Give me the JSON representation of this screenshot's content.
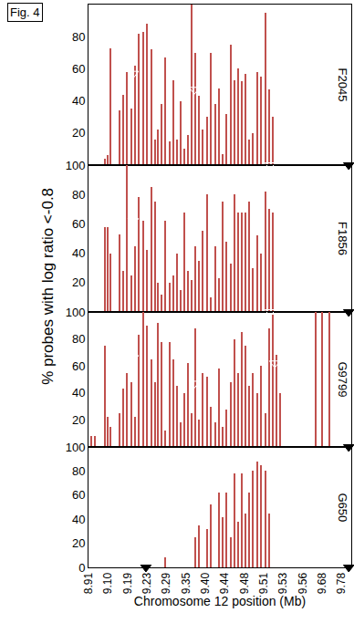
{
  "figure_label": "Fig. 4",
  "y_label": "% probes with log ratio <-0.8",
  "x_label": "Chromosome 12 position (Mb)",
  "xlim": [
    0,
    13.5
  ],
  "xticks": [
    {
      "value": 0,
      "label": "8.91"
    },
    {
      "value": 1,
      "label": "9.10"
    },
    {
      "value": 2,
      "label": "9.19"
    },
    {
      "value": 3,
      "label": "9.23"
    },
    {
      "value": 4,
      "label": "9.29"
    },
    {
      "value": 5,
      "label": "9.35"
    },
    {
      "value": 6,
      "label": "9.40"
    },
    {
      "value": 7,
      "label": "9.44"
    },
    {
      "value": 8,
      "label": "9.48"
    },
    {
      "value": 9,
      "label": "9.51"
    },
    {
      "value": 10,
      "label": "9.53"
    },
    {
      "value": 11,
      "label": "9.56"
    },
    {
      "value": 12,
      "label": "9.68"
    },
    {
      "value": 13,
      "label": "9.78"
    }
  ],
  "chart_data": [
    {
      "type": "bar",
      "title": "F2045",
      "color": "#c0504d",
      "ylim": [
        0,
        100
      ],
      "yticks": [
        20,
        40,
        60,
        80,
        100
      ],
      "tick_labels": "y",
      "x": [
        0.84,
        0.98,
        1.13,
        1.59,
        1.78,
        1.97,
        2.2,
        2.39,
        2.58,
        2.81,
        3.0,
        3.24,
        3.42,
        3.56,
        3.75,
        3.94,
        4.17,
        4.36,
        4.55,
        4.74,
        4.92,
        5.11,
        5.3,
        5.49,
        5.67,
        5.86,
        6.1,
        6.28,
        6.52,
        6.71,
        6.89,
        7.08,
        7.32,
        7.5,
        7.69,
        7.88,
        8.07,
        8.25,
        8.44,
        8.68,
        8.86,
        9.1,
        9.29,
        9.47
      ],
      "values": [
        4,
        6,
        73,
        34,
        44,
        58,
        35,
        62,
        82,
        83,
        88,
        72,
        16,
        22,
        38,
        67,
        15,
        53,
        16,
        40,
        10,
        19,
        100,
        70,
        43,
        22,
        30,
        70,
        38,
        48,
        7,
        32,
        75,
        53,
        60,
        52,
        57,
        16,
        20,
        58,
        55,
        95,
        47,
        30
      ],
      "series": [
        {
          "type": "scatter",
          "marker": "triangle-down-open",
          "x": [
            2.3,
            5.44,
            9.33,
            9.57
          ],
          "values": [
            57,
            47,
            97,
            62
          ]
        },
        {
          "type": "scatter",
          "marker": "triangle-down",
          "x": [
            13.37
          ],
          "values": [
            0
          ]
        }
      ]
    },
    {
      "type": "bar",
      "title": "F1856",
      "color": "#c0504d",
      "ylim": [
        0,
        100
      ],
      "yticks": [
        20,
        40,
        60,
        80,
        100
      ],
      "tick_labels": "y",
      "x": [
        0.84,
        0.98,
        1.13,
        1.59,
        1.78,
        1.97,
        2.2,
        2.39,
        2.58,
        2.81,
        3.0,
        3.24,
        3.42,
        3.56,
        3.75,
        3.94,
        4.17,
        4.36,
        4.55,
        4.74,
        4.92,
        5.11,
        5.3,
        5.49,
        5.67,
        5.86,
        6.1,
        6.28,
        6.52,
        6.71,
        6.89,
        7.08,
        7.32,
        7.5,
        7.69,
        7.88,
        8.07,
        8.25,
        8.44,
        8.68,
        8.86,
        9.1,
        9.29,
        9.47
      ],
      "values": [
        58,
        58,
        40,
        53,
        28,
        100,
        25,
        45,
        78,
        62,
        42,
        85,
        75,
        20,
        12,
        62,
        20,
        25,
        40,
        15,
        68,
        28,
        22,
        45,
        35,
        55,
        80,
        10,
        45,
        23,
        75,
        48,
        33,
        80,
        68,
        68,
        68,
        75,
        30,
        52,
        40,
        82,
        70,
        68
      ],
      "series": [
        {
          "type": "scatter",
          "marker": "triangle-down-open",
          "x": [
            2.3,
            5.44,
            9.33,
            9.57
          ],
          "values": [
            62,
            52,
            100,
            72
          ]
        },
        {
          "type": "scatter",
          "marker": "triangle-down",
          "x": [
            13.37
          ],
          "values": [
            0
          ]
        }
      ]
    },
    {
      "type": "bar",
      "title": "G9799",
      "color": "#c0504d",
      "ylim": [
        0,
        100
      ],
      "yticks": [
        20,
        40,
        60,
        80,
        100
      ],
      "tick_labels": "y",
      "x": [
        0.14,
        0.33,
        0.84,
        0.98,
        1.13,
        1.59,
        1.78,
        1.97,
        2.2,
        2.39,
        2.58,
        2.81,
        3.0,
        3.24,
        3.42,
        3.56,
        3.75,
        3.94,
        4.17,
        4.36,
        4.55,
        4.74,
        4.92,
        5.11,
        5.3,
        5.49,
        5.67,
        5.86,
        6.1,
        6.28,
        6.52,
        6.71,
        6.89,
        7.08,
        7.32,
        7.5,
        7.69,
        7.88,
        8.07,
        8.25,
        8.44,
        8.68,
        8.86,
        9.1,
        9.29,
        9.47,
        9.66,
        9.85,
        11.68,
        12.0,
        12.38
      ],
      "values": [
        8,
        8,
        75,
        22,
        15,
        25,
        43,
        55,
        48,
        22,
        83,
        100,
        90,
        65,
        48,
        92,
        78,
        12,
        78,
        65,
        45,
        18,
        40,
        62,
        25,
        88,
        20,
        55,
        52,
        30,
        18,
        58,
        15,
        28,
        48,
        80,
        55,
        85,
        75,
        45,
        55,
        40,
        60,
        25,
        88,
        98,
        68,
        40,
        100,
        100,
        100
      ],
      "series": [
        {
          "type": "scatter",
          "marker": "triangle-down-open",
          "x": [
            2.3,
            5.44,
            9.33,
            9.57
          ],
          "values": [
            66,
            47,
            100,
            62
          ]
        },
        {
          "type": "scatter",
          "marker": "triangle-down",
          "x": [
            13.37
          ],
          "values": [
            0
          ]
        }
      ]
    },
    {
      "type": "bar",
      "title": "G650",
      "color": "#c0504d",
      "ylim": [
        0,
        100
      ],
      "yticks": [
        0,
        20,
        40,
        60,
        80,
        100
      ],
      "tick_labels": true,
      "x": [
        3.94,
        5.49,
        5.67,
        6.1,
        6.28,
        6.71,
        6.89,
        7.08,
        7.32,
        7.5,
        7.69,
        7.88,
        8.07,
        8.25,
        8.44,
        8.68,
        8.86,
        9.1,
        9.29
      ],
      "values": [
        8,
        25,
        35,
        32,
        52,
        62,
        42,
        62,
        25,
        78,
        38,
        78,
        45,
        62,
        80,
        88,
        85,
        80,
        45
      ],
      "series": [
        {
          "type": "scatter",
          "marker": "triangle-down-open",
          "x": [
            5.44,
            9.33,
            9.57
          ],
          "values": [
            47,
            97,
            62
          ]
        },
        {
          "type": "scatter",
          "marker": "triangle-down",
          "x": [
            2.95,
            13.37
          ],
          "values": [
            0,
            0
          ]
        }
      ]
    }
  ]
}
